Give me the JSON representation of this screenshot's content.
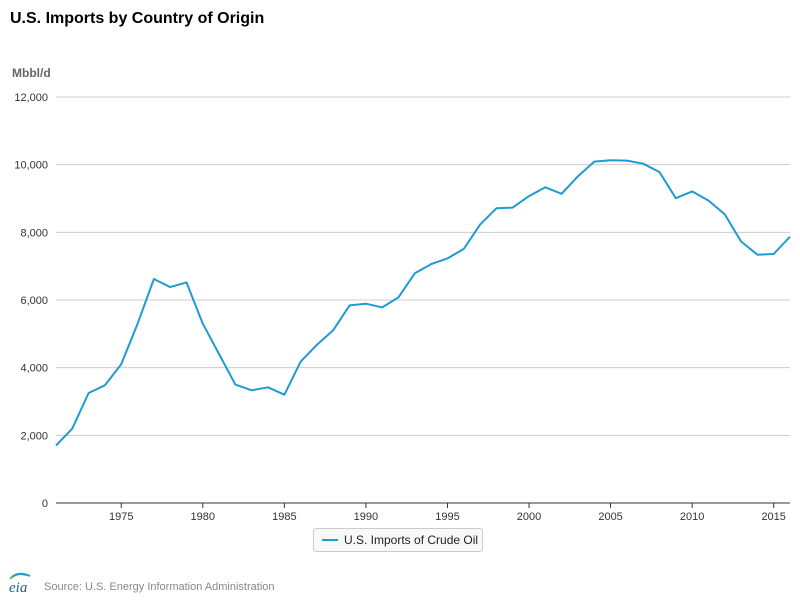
{
  "header": {
    "title": "U.S. Imports by Country of Origin"
  },
  "footer": {
    "source": "Source: U.S. Energy Information Administration",
    "logo_text": "eia"
  },
  "colors": {
    "series": "#1f9bd4",
    "grid": "#cccccc",
    "axis": "#333333"
  },
  "chart_data": {
    "type": "line",
    "title": "U.S. Imports by Country of Origin",
    "ylabel": "Mbbl/d",
    "xlabel": "",
    "ylim": [
      0,
      12000
    ],
    "xlim": [
      1971,
      2016
    ],
    "yticks": [
      0,
      2000,
      4000,
      6000,
      8000,
      10000,
      12000
    ],
    "ytick_labels": [
      "0",
      "2,000",
      "4,000",
      "6,000",
      "8,000",
      "10,000",
      "12,000"
    ],
    "xticks": [
      1975,
      1980,
      1985,
      1990,
      1995,
      2000,
      2005,
      2010,
      2015
    ],
    "xtick_labels": [
      "1975",
      "1980",
      "1985",
      "1990",
      "1995",
      "2000",
      "2005",
      "2010",
      "2015"
    ],
    "grid": true,
    "legend": "bottom-center",
    "series": [
      {
        "name": "U.S. Imports of Crude Oil",
        "x": [
          1971,
          1972,
          1973,
          1974,
          1975,
          1976,
          1977,
          1978,
          1979,
          1980,
          1981,
          1982,
          1983,
          1984,
          1985,
          1986,
          1987,
          1988,
          1989,
          1990,
          1991,
          1992,
          1993,
          1994,
          1995,
          1996,
          1997,
          1998,
          1999,
          2000,
          2001,
          2002,
          2003,
          2004,
          2005,
          2006,
          2007,
          2008,
          2009,
          2010,
          2011,
          2012,
          2013,
          2014,
          2015,
          2016
        ],
        "values": [
          1700,
          2200,
          3250,
          3480,
          4100,
          5300,
          6620,
          6380,
          6520,
          5300,
          4400,
          3500,
          3330,
          3420,
          3200,
          4180,
          4680,
          5110,
          5840,
          5890,
          5780,
          6080,
          6790,
          7060,
          7230,
          7510,
          8230,
          8710,
          8730,
          9070,
          9330,
          9140,
          9660,
          10090,
          10130,
          10120,
          10030,
          9780,
          9010,
          9210,
          8940,
          8530,
          7730,
          7340,
          7360,
          7870
        ]
      }
    ]
  }
}
